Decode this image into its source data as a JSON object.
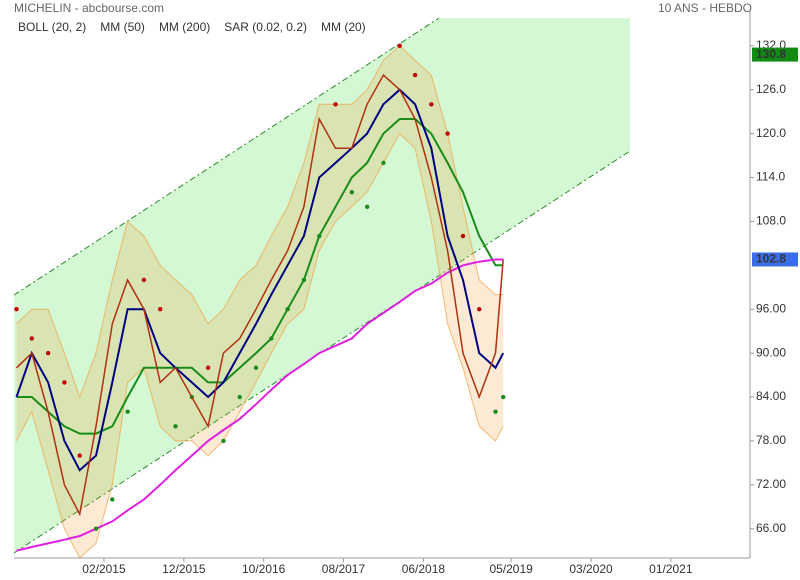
{
  "header": {
    "title": "MICHELIN - abcbourse.com",
    "period": "10 ANS - HEBDO"
  },
  "chart_data": {
    "type": "line",
    "color": "#b03010",
    "x": [
      2014.17,
      2014.33,
      2014.5,
      2014.67,
      2014.83,
      2015.0,
      2015.17,
      2015.33,
      2015.5,
      2015.67,
      2015.83,
      2016.0,
      2016.17,
      2016.33,
      2016.5,
      2016.67,
      2016.83,
      2017.0,
      2017.17,
      2017.33,
      2017.5,
      2017.67,
      2017.83,
      2018.0,
      2018.17,
      2018.33,
      2018.5,
      2018.67,
      2018.83,
      2019.0,
      2019.17,
      2019.25
    ],
    "values": [
      88,
      90,
      82,
      72,
      68,
      80,
      94,
      100,
      96,
      86,
      88,
      84,
      80,
      90,
      92,
      96,
      100,
      104,
      110,
      122,
      118,
      118,
      124,
      128,
      126,
      122,
      114,
      104,
      90,
      84,
      90,
      102.8
    ],
    "boll": {
      "name": "BOLL (20, 2)",
      "color": "#f0a040",
      "upper": [
        94,
        96,
        96,
        90,
        84,
        90,
        100,
        108,
        106,
        102,
        100,
        98,
        94,
        96,
        100,
        102,
        106,
        110,
        116,
        124,
        124,
        124,
        126,
        130,
        132,
        130,
        128,
        120,
        110,
        100,
        98,
        98
      ],
      "lower": [
        78,
        82,
        74,
        66,
        62,
        64,
        72,
        86,
        88,
        80,
        78,
        78,
        76,
        78,
        82,
        86,
        90,
        94,
        96,
        104,
        108,
        110,
        112,
        116,
        120,
        118,
        108,
        94,
        88,
        80,
        78,
        80
      ]
    },
    "series": [
      {
        "name": "MM (50)",
        "color": "#1a8c1a",
        "values": [
          84,
          84,
          82,
          80,
          79,
          79,
          80,
          84,
          88,
          88,
          88,
          88,
          86,
          86,
          88,
          90,
          92,
          96,
          100,
          106,
          110,
          114,
          116,
          120,
          122,
          122,
          120,
          116,
          112,
          106,
          102,
          102
        ]
      },
      {
        "name": "MM (200)",
        "color": "#e020e0",
        "values": [
          63,
          63.5,
          64,
          64.5,
          65,
          66,
          67,
          68.5,
          70,
          72,
          74,
          76,
          78,
          79.5,
          81,
          83,
          85,
          87,
          88.5,
          90,
          91,
          92,
          94,
          95.5,
          97,
          98.5,
          99.5,
          101,
          102,
          102.5,
          102.8,
          102.8
        ]
      },
      {
        "name": "SAR (0.02, 0.2)",
        "color": "#c00000",
        "dots": true,
        "values": [
          96,
          92,
          90,
          86,
          76,
          66,
          70,
          82,
          100,
          96,
          80,
          84,
          88,
          78,
          84,
          88,
          92,
          96,
          100,
          106,
          124,
          112,
          110,
          116,
          132,
          128,
          124,
          120,
          106,
          96,
          82,
          84
        ]
      },
      {
        "name": "MM (20)",
        "color": "#000080",
        "values": [
          84,
          90,
          86,
          78,
          74,
          76,
          86,
          96,
          96,
          90,
          88,
          86,
          84,
          86,
          90,
          94,
          98,
          102,
          106,
          114,
          116,
          118,
          120,
          124,
          126,
          124,
          118,
          106,
          100,
          90,
          88,
          90
        ]
      }
    ],
    "xlim": [
      2014.144,
      2021.826
    ],
    "xticks": [
      {
        "value": 2015.083,
        "label": "02/2015"
      },
      {
        "value": 2015.917,
        "label": "12/2015"
      },
      {
        "value": 2016.75,
        "label": "10/2016"
      },
      {
        "value": 2017.583,
        "label": "08/2017"
      },
      {
        "value": 2018.417,
        "label": "06/2018"
      },
      {
        "value": 2019.333,
        "label": "05/2019"
      },
      {
        "value": 2020.167,
        "label": "03/2020"
      },
      {
        "value": 2021.0,
        "label": "01/2021"
      }
    ],
    "ylim": [
      62,
      135.8
    ],
    "yticks": [
      {
        "value": 66,
        "label": "66.00"
      },
      {
        "value": 72,
        "label": "72.00"
      },
      {
        "value": 78,
        "label": "78.00"
      },
      {
        "value": 84,
        "label": "84.00"
      },
      {
        "value": 90,
        "label": "90.00"
      },
      {
        "value": 96,
        "label": "96.00"
      },
      {
        "value": 108,
        "label": "108.0"
      },
      {
        "value": 114,
        "label": "114.0"
      },
      {
        "value": 120,
        "label": "120.0"
      },
      {
        "value": 126,
        "label": "126.0"
      },
      {
        "value": 132,
        "label": "132.0"
      }
    ],
    "price_tags": [
      {
        "value": 130.8,
        "color": "#138a13"
      },
      {
        "value": 102.8,
        "color": "#3a6ee8"
      }
    ]
  }
}
